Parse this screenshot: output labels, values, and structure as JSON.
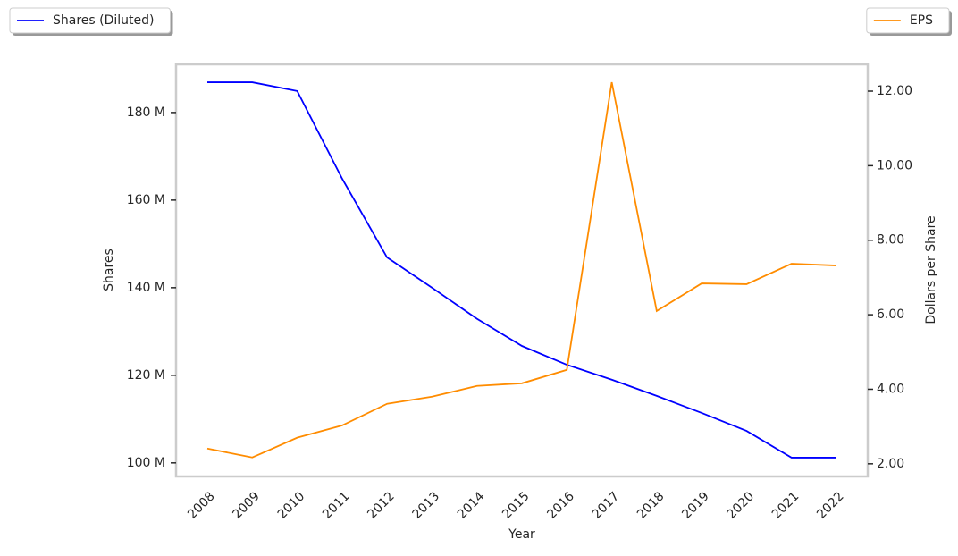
{
  "chart_data": {
    "type": "line",
    "x_label": "Year",
    "y_label": "Shares",
    "y2_label": "Dollars per Share",
    "categories": [
      "2008",
      "2009",
      "2010",
      "2011",
      "2012",
      "2013",
      "2014",
      "2015",
      "2016",
      "2017",
      "2018",
      "2019",
      "2020",
      "2021",
      "2022"
    ],
    "series": [
      {
        "name": "Shares (Diluted)",
        "color": "#0000ff",
        "legend": "upper left",
        "values": [
          186900000,
          186900000,
          184900000,
          164900000,
          146900000,
          140000000,
          132900000,
          126700000,
          122400000,
          119000000,
          115300000,
          111400000,
          107300000,
          101200000,
          101200000
        ]
      },
      {
        "name": "EPS",
        "color": "#ff8c00",
        "axis": "y2",
        "legend": "upper right",
        "values": [
          2.41,
          2.17,
          2.7,
          3.03,
          3.61,
          3.8,
          4.09,
          4.16,
          4.52,
          12.24,
          6.1,
          6.84,
          6.82,
          7.37,
          7.32
        ]
      }
    ],
    "ylim": [
      96900000,
      191000000
    ],
    "yticks": [
      {
        "value": 100000000,
        "label": "100 M"
      },
      {
        "value": 120000000,
        "label": "120 M"
      },
      {
        "value": 140000000,
        "label": "140 M"
      },
      {
        "value": 160000000,
        "label": "160 M"
      },
      {
        "value": 180000000,
        "label": "180 M"
      }
    ],
    "y2lim": [
      1.66,
      12.72
    ],
    "y2ticks": [
      {
        "value": 2,
        "label": "2.00"
      },
      {
        "value": 4,
        "label": "4.00"
      },
      {
        "value": 6,
        "label": "6.00"
      },
      {
        "value": 8,
        "label": "8.00"
      },
      {
        "value": 10,
        "label": "10.00"
      },
      {
        "value": 12,
        "label": "12.00"
      }
    ]
  }
}
